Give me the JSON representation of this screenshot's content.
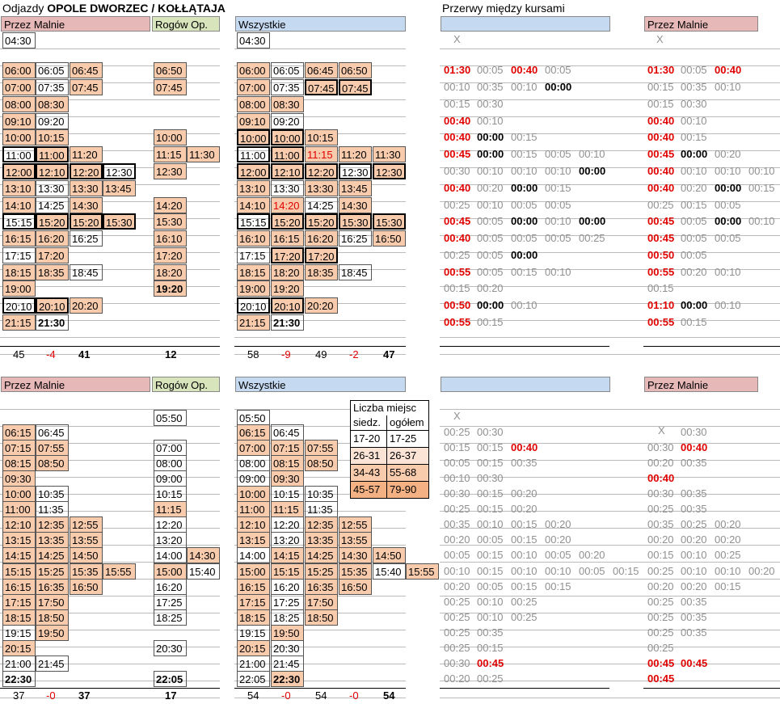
{
  "title": {
    "prefix": "Odjazdy ",
    "station": "OPOLE DWORZEC / KOŁŁĄTAJA"
  },
  "breaks_title": "Przerwy między kursami",
  "colors": {
    "peach": "#f8cbad",
    "pink": "#e6b8b7",
    "blue": "#c5d9f1",
    "green": "#d8e4bc",
    "red": "#e00000",
    "gray": "#909090"
  },
  "headers": {
    "malnie": "Przez Malnie",
    "rogow": "Rogów Op.",
    "all": "Wszystkie"
  },
  "capacity": {
    "title1": "Liczba miejsc",
    "col1": "siedz.",
    "col2": "ogółem",
    "rows": [
      [
        "17-20",
        "17-25"
      ],
      [
        "26-31",
        "26-37"
      ],
      [
        "34-43",
        "55-68"
      ],
      [
        "45-57",
        "79-90"
      ]
    ]
  },
  "top": {
    "totals": {
      "malnie": [
        "45",
        "-4",
        "41"
      ],
      "rogow": [
        "12"
      ],
      "all": [
        "58",
        "-9",
        "49",
        "-2",
        "47"
      ]
    },
    "breaks_x": [
      "X",
      "X"
    ]
  },
  "bottom": {
    "totals": {
      "malnie": [
        "37",
        "-0",
        "37"
      ],
      "rogow": [
        "17"
      ],
      "all": [
        "54",
        "-0",
        "54",
        "-0",
        "54"
      ]
    },
    "breaks_x": [
      "X",
      "X"
    ]
  },
  "cells": [
    [
      "04:30",
      "04:30"
    ],
    [
      "06:00",
      "06:05",
      "06:45",
      "06:50",
      "06:00",
      "06:05",
      "06:45",
      "06:50",
      "01:30",
      "00:05",
      "00:40",
      "00:05",
      "01:30",
      "00:05",
      "00:40"
    ],
    [
      "07:00",
      "07:35",
      "07:45",
      "07:45",
      "07:00",
      "07:35",
      "07:45",
      "07:45",
      "00:10",
      "00:35",
      "00:10",
      "00:00",
      "00:15",
      "00:35",
      "00:10"
    ],
    [
      "08:00",
      "08:30",
      "08:00",
      "08:30",
      "00:15",
      "00:30",
      "00:15",
      "00:30"
    ],
    [
      "09:10",
      "09:20",
      "09:10",
      "09:20",
      "00:40",
      "00:10",
      "00:40",
      "00:10"
    ],
    [
      "10:00",
      "10:15",
      "10:00",
      "10:00",
      "10:00",
      "10:15",
      "00:40",
      "00:00",
      "00:15",
      "00:40",
      "00:15"
    ],
    [
      "11:00",
      "11:00",
      "11:20",
      "11:15",
      "11:30",
      "11:00",
      "11:00",
      "11:15",
      "11:20",
      "11:30",
      "00:45",
      "00:00",
      "00:15",
      "00:05",
      "00:10",
      "00:45",
      "00:00",
      "00:20"
    ],
    [
      "12:00",
      "12:10",
      "12:20",
      "12:30",
      "12:30",
      "12:00",
      "12:10",
      "12:20",
      "12:30",
      "12:30",
      "00:30",
      "00:10",
      "00:10",
      "00:10",
      "00:00",
      "00:40",
      "00:10",
      "00:10",
      "00:10"
    ],
    [
      "13:10",
      "13:30",
      "13:30",
      "13:45",
      "13:10",
      "13:30",
      "13:30",
      "13:45",
      "00:40",
      "00:20",
      "00:00",
      "00:15",
      "00:40",
      "00:20",
      "00:00",
      "00:15"
    ],
    [
      "14:10",
      "14:25",
      "14:30",
      "14:20",
      "14:10",
      "14:20",
      "14:25",
      "14:30",
      "00:25",
      "00:10",
      "00:05",
      "00:05",
      "00:25",
      "00:15",
      "00:05"
    ],
    [
      "15:15",
      "15:20",
      "15:20",
      "15:30",
      "15:30",
      "15:15",
      "15:20",
      "15:20",
      "15:30",
      "15:30",
      "00:45",
      "00:05",
      "00:00",
      "00:10",
      "00:00",
      "00:45",
      "00:05",
      "00:00",
      "00:10"
    ],
    [
      "16:15",
      "16:20",
      "16:25",
      "16:10",
      "16:10",
      "16:15",
      "16:20",
      "16:25",
      "16:50",
      "00:40",
      "00:05",
      "00:05",
      "00:05",
      "00:25",
      "00:45",
      "00:05",
      "00:05"
    ],
    [
      "17:15",
      "17:20",
      "17:20",
      "17:15",
      "17:20",
      "17:20",
      "00:25",
      "00:05",
      "00:00",
      "00:50",
      "00:05"
    ],
    [
      "18:15",
      "18:35",
      "18:45",
      "18:20",
      "18:15",
      "18:20",
      "18:35",
      "18:45",
      "00:55",
      "00:05",
      "00:15",
      "00:10",
      "00:55",
      "00:20",
      "00:10"
    ],
    [
      "19:00",
      "19:20",
      "19:00",
      "19:20",
      "00:15",
      "00:20",
      "00:15"
    ],
    [
      "20:10",
      "20:10",
      "20:20",
      "20:10",
      "20:10",
      "20:20",
      "00:50",
      "00:00",
      "00:10",
      "01:10",
      "00:00",
      "00:10"
    ],
    [
      "21:15",
      "21:30",
      "21:15",
      "21:30",
      "00:55",
      "00:15",
      "00:55",
      "00:15"
    ],
    [
      "05:50",
      "05:50"
    ],
    [
      "06:15",
      "06:45",
      "06:15",
      "06:45",
      "00:25",
      "00:30",
      "00:30"
    ],
    [
      "07:15",
      "07:55",
      "07:00",
      "07:00",
      "07:15",
      "07:55",
      "00:15",
      "00:15",
      "00:40",
      "00:30",
      "00:40"
    ],
    [
      "08:15",
      "08:50",
      "08:00",
      "08:00",
      "08:15",
      "08:50",
      "00:05",
      "00:15",
      "00:35",
      "00:20",
      "00:35"
    ],
    [
      "09:30",
      "09:00",
      "09:00",
      "09:30",
      "00:10",
      "00:30",
      "00:40"
    ],
    [
      "10:00",
      "10:35",
      "10:15",
      "10:00",
      "10:15",
      "10:35",
      "00:30",
      "00:15",
      "00:20",
      "00:30",
      "00:35"
    ],
    [
      "11:00",
      "11:35",
      "11:15",
      "11:00",
      "11:15",
      "11:35",
      "00:25",
      "00:15",
      "00:20",
      "00:25",
      "00:35"
    ],
    [
      "12:10",
      "12:35",
      "12:55",
      "12:20",
      "12:10",
      "12:20",
      "12:35",
      "12:55",
      "00:35",
      "00:10",
      "00:15",
      "00:20",
      "00:35",
      "00:25",
      "00:20"
    ],
    [
      "13:15",
      "13:35",
      "13:55",
      "13:20",
      "13:15",
      "13:20",
      "13:35",
      "13:55",
      "00:20",
      "00:05",
      "00:15",
      "00:20",
      "00:20",
      "00:20",
      "00:20"
    ],
    [
      "14:15",
      "14:25",
      "14:50",
      "14:00",
      "14:30",
      "14:00",
      "14:15",
      "14:25",
      "14:30",
      "14:50",
      "00:05",
      "00:15",
      "00:10",
      "00:05",
      "00:20",
      "00:15",
      "00:10",
      "00:25"
    ],
    [
      "15:15",
      "15:25",
      "15:35",
      "15:55",
      "15:00",
      "15:40",
      "15:00",
      "15:15",
      "15:25",
      "15:35",
      "15:40",
      "15:55",
      "00:10",
      "00:15",
      "00:10",
      "00:10",
      "00:05",
      "00:15",
      "00:25",
      "00:10",
      "00:10",
      "00:20"
    ],
    [
      "16:15",
      "16:35",
      "16:50",
      "16:20",
      "16:15",
      "16:20",
      "16:35",
      "16:50",
      "00:20",
      "00:05",
      "00:15",
      "00:15",
      "00:20",
      "00:20",
      "00:15"
    ],
    [
      "17:15",
      "17:50",
      "17:25",
      "17:15",
      "17:25",
      "17:50",
      "00:25",
      "00:10",
      "00:25",
      "00:25",
      "00:35"
    ],
    [
      "18:15",
      "18:50",
      "18:25",
      "18:15",
      "18:25",
      "18:50",
      "00:25",
      "00:10",
      "00:25",
      "00:25",
      "00:35"
    ],
    [
      "19:15",
      "19:50",
      "19:15",
      "19:50",
      "00:25",
      "00:35",
      "00:25",
      "00:35"
    ],
    [
      "20:15",
      "20:30",
      "20:15",
      "20:30",
      "00:25",
      "00:15",
      "00:25"
    ],
    [
      "21:00",
      "21:45",
      "21:00",
      "21:45",
      "00:30",
      "00:45",
      "00:45",
      "00:45"
    ],
    [
      "22:30",
      "22:05",
      "22:05",
      "22:30",
      "00:20",
      "00:25",
      "00:45"
    ]
  ]
}
